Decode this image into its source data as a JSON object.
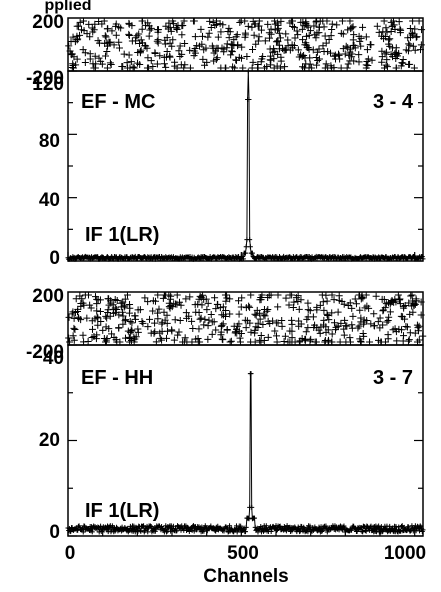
{
  "header_fragment": "pplied",
  "xaxis": {
    "label": "Channels",
    "ticks": [
      "0",
      "500",
      "1000"
    ],
    "range": [
      0,
      1024
    ]
  },
  "chart_data": [
    {
      "type": "scatter",
      "panel": "phase",
      "ylim": [
        -200,
        200
      ],
      "ytick_labels": [
        "200",
        "-200"
      ],
      "x": [
        0,
        1024
      ],
      "note_values": "random phase scatter between -200 and 200"
    },
    {
      "type": "line",
      "panel": "amplitude",
      "title_left": "EF - MC",
      "title_right": "3 - 4",
      "label_if": "IF 1(LR)",
      "ylim": [
        0,
        120
      ],
      "ytick_labels": [
        "0",
        "40",
        "80",
        "120"
      ],
      "peak": {
        "x": 520,
        "y": 120
      },
      "baseline": 2
    },
    {
      "type": "scatter",
      "panel": "phase",
      "ylim": [
        -200,
        200
      ],
      "ytick_labels": [
        "200",
        "-200"
      ],
      "x": [
        0,
        1024
      ]
    },
    {
      "type": "line",
      "panel": "amplitude",
      "title_left": "EF - HH",
      "title_right": "3 - 7",
      "label_if": "IF 1(LR)",
      "ylim": [
        0,
        40
      ],
      "ytick_labels": [
        "0",
        "20",
        "40"
      ],
      "peak": {
        "x": 527,
        "y": 40
      },
      "baseline": 1.5
    }
  ]
}
